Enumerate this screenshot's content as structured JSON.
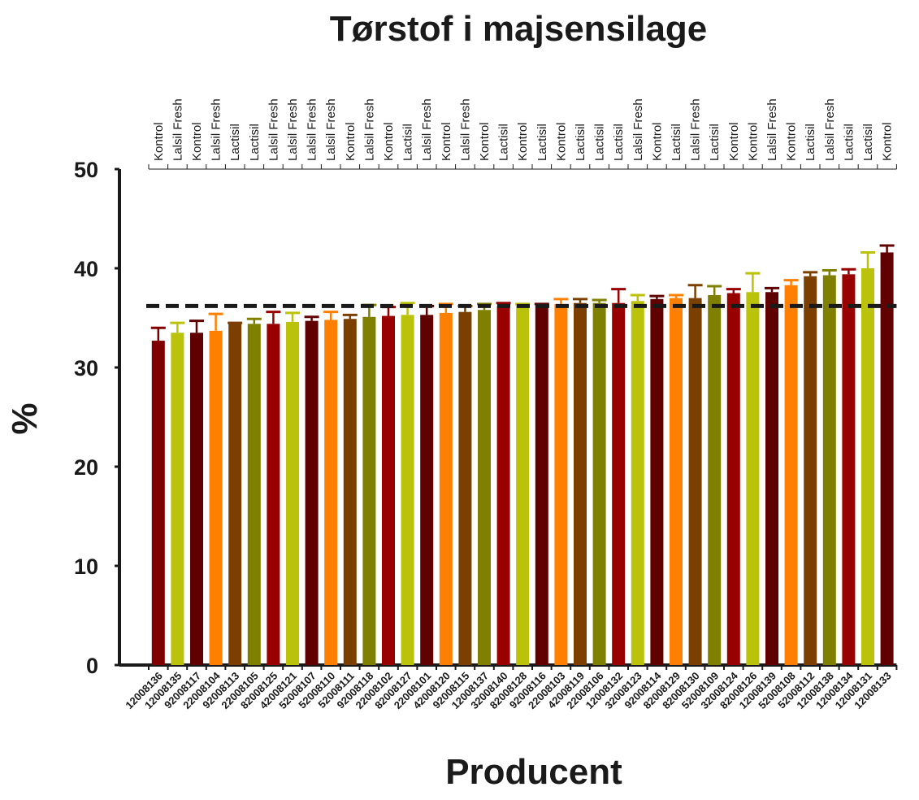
{
  "chart_data": {
    "type": "bar",
    "title": "Tørstof i majsensilage",
    "xlabel": "Producent",
    "ylabel": "%",
    "ylim": [
      0,
      50
    ],
    "yticks": [
      "0",
      "10",
      "20",
      "30",
      "40",
      "50"
    ],
    "reference_line": 36.2,
    "categories": [
      "12008136",
      "12008135",
      "92008117",
      "22008104",
      "92008113",
      "22008105",
      "82008125",
      "42008121",
      "52008107",
      "52008110",
      "52008111",
      "92008118",
      "22008102",
      "82008127",
      "22008101",
      "42008120",
      "92008115",
      "12008137",
      "32008140",
      "82008128",
      "92008116",
      "22008103",
      "42008119",
      "22008106",
      "12008132",
      "32008123",
      "92008114",
      "82008129",
      "82008130",
      "52008109",
      "32008124",
      "82008126",
      "12008139",
      "52008108",
      "52008112",
      "12008138",
      "12008134",
      "12008131",
      "12008133"
    ],
    "treatments": [
      "Kontrol",
      "Lalsil Fresh",
      "Kontrol",
      "Lalsil Fresh",
      "Lactisil",
      "Lactisil",
      "Lalsil Fresh",
      "Lalsil Fresh",
      "Lalsil Fresh",
      "Lalsil Fresh",
      "Kontrol",
      "Lalsil Fresh",
      "Kontrol",
      "Lactisil",
      "Lalsil Fresh",
      "Kontrol",
      "Lalsil Fresh",
      "Kontrol",
      "Lactisil",
      "Kontrol",
      "Lactisil",
      "Kontrol",
      "Lactisil",
      "Lactisil",
      "Lactisil",
      "Lalsil Fresh",
      "Kontrol",
      "Lactisil",
      "Lalsil Fresh",
      "Lactisil",
      "Kontrol",
      "Kontrol",
      "Lalsil Fresh",
      "Kontrol",
      "Lactisil",
      "Lalsil Fresh",
      "Lactisil",
      "Lactisil",
      "Kontrol"
    ],
    "values": [
      32.7,
      33.5,
      33.5,
      33.7,
      34.4,
      34.4,
      34.4,
      34.6,
      34.7,
      34.8,
      34.9,
      35.1,
      35.2,
      35.3,
      35.3,
      35.5,
      35.6,
      35.8,
      36.2,
      36.3,
      36.3,
      36.4,
      36.5,
      36.5,
      36.5,
      36.7,
      36.9,
      37.0,
      37.0,
      37.3,
      37.5,
      37.6,
      37.6,
      38.3,
      39.2,
      39.3,
      39.4,
      40.0,
      41.6
    ],
    "errors": [
      1.3,
      1.0,
      1.2,
      1.7,
      0.1,
      0.5,
      1.2,
      0.9,
      0.4,
      0.8,
      0.4,
      1.2,
      0.9,
      1.2,
      0.9,
      0.9,
      0.6,
      0.6,
      0.3,
      0.1,
      0.1,
      0.5,
      0.4,
      0.3,
      1.4,
      0.6,
      0.3,
      0.3,
      1.3,
      0.9,
      0.4,
      1.9,
      0.4,
      0.5,
      0.4,
      0.5,
      0.5,
      1.6,
      0.7
    ],
    "colors": [
      "#800000",
      "#bbc20a",
      "#600000",
      "#ff8000",
      "#7b4000",
      "#808000",
      "#990000",
      "#bbc20a",
      "#600000",
      "#ff8000",
      "#7b4000",
      "#808000",
      "#990000",
      "#bbc20a",
      "#600000",
      "#ff8000",
      "#7b4000",
      "#808000",
      "#990000",
      "#bbc20a",
      "#600000",
      "#ff8000",
      "#7b4000",
      "#808000",
      "#990000",
      "#bbc20a",
      "#600000",
      "#ff8000",
      "#7b4000",
      "#808000",
      "#990000",
      "#bbc20a",
      "#600000",
      "#ff8000",
      "#7b4000",
      "#808000",
      "#990000",
      "#bbc20a",
      "#600000"
    ]
  }
}
